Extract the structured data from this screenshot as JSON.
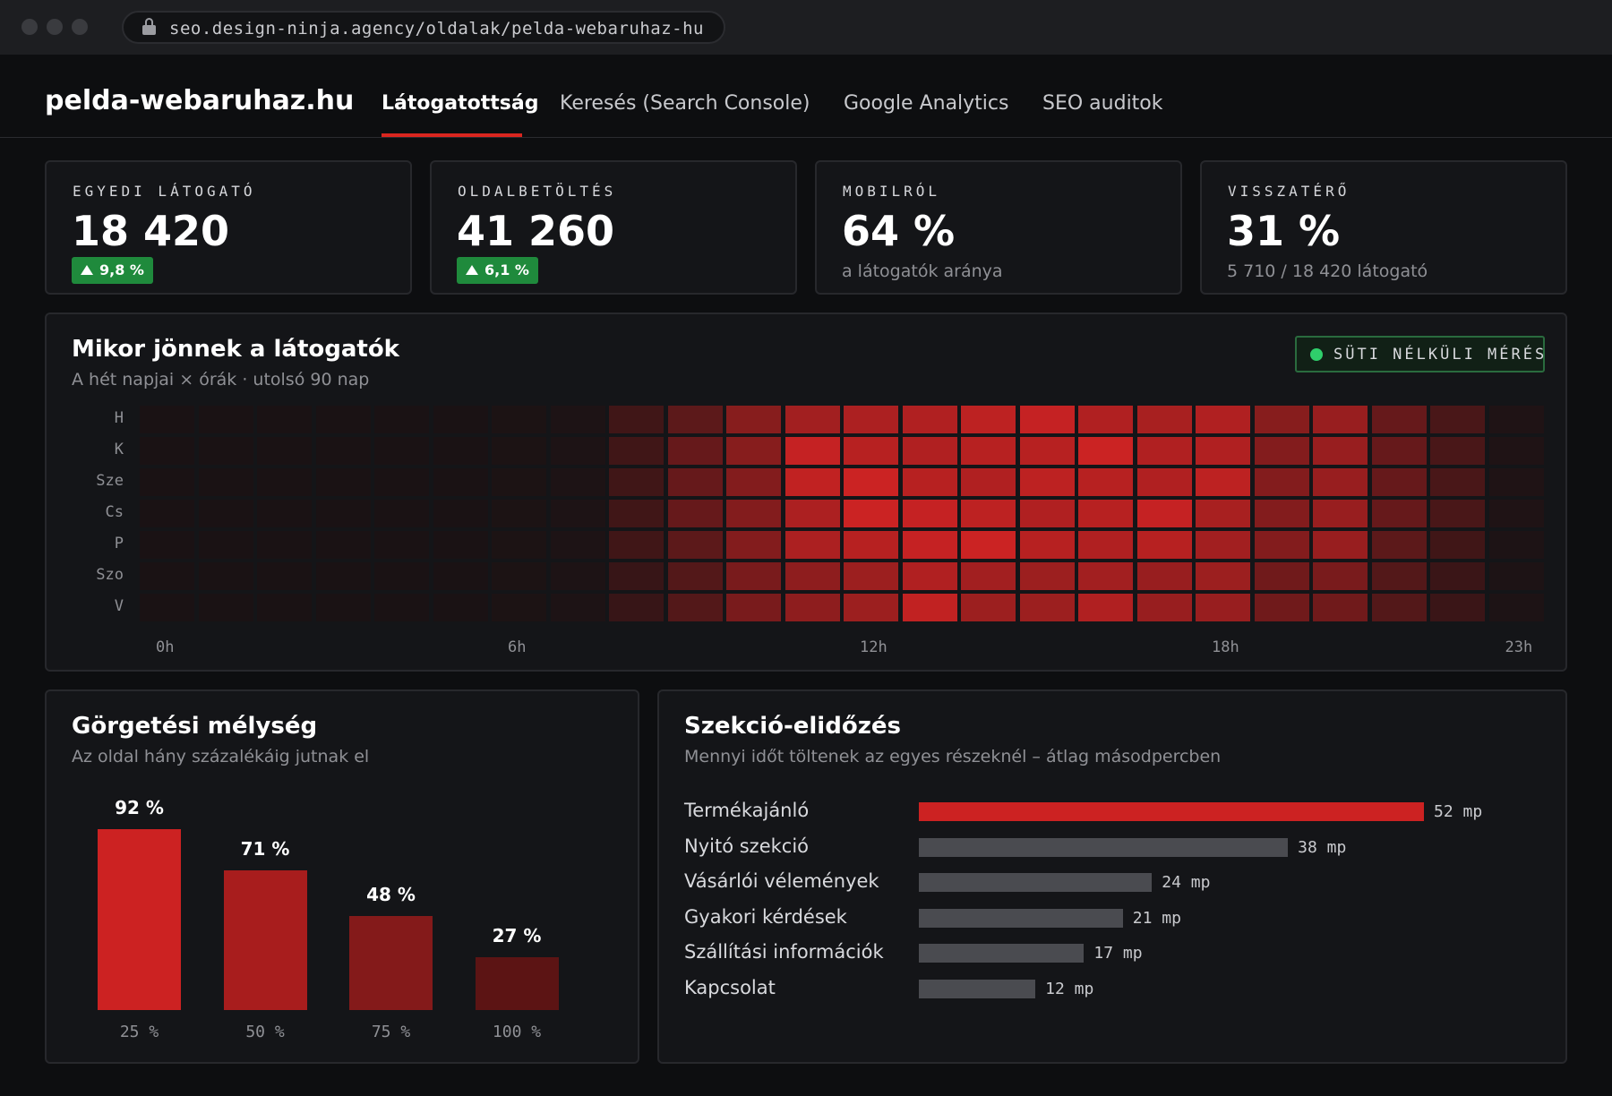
{
  "browser": {
    "url": "seo.design-ninja.agency/oldalak/pelda-webaruhaz-hu"
  },
  "header": {
    "site_title": "pelda-webaruhaz.hu",
    "tabs": [
      {
        "label": "Látogatottság",
        "active": true
      },
      {
        "label": "Keresés (Search Console)",
        "active": false
      },
      {
        "label": "Google Analytics",
        "active": false
      },
      {
        "label": "SEO auditok",
        "active": false
      }
    ]
  },
  "kpis": [
    {
      "label": "EGYEDI LÁTOGATÓ",
      "value": "18 420",
      "badge": "9,8 %"
    },
    {
      "label": "OLDALBETÖLTÉS",
      "value": "41 260",
      "badge": "6,1 %"
    },
    {
      "label": "MOBILRÓL",
      "value": "64 %",
      "sub": "a látogatók aránya"
    },
    {
      "label": "VISSZATÉRŐ",
      "value": "31 %",
      "sub": "5 710 / 18 420 látogató"
    }
  ],
  "heatmap": {
    "title": "Mikor jönnek a látogatók",
    "subtitle": "A hét napjai × órák · utolsó 90 nap",
    "badge": "SÜTI NÉLKÜLI MÉRÉS",
    "chart_data": {
      "type": "heatmap",
      "rows": [
        "H",
        "K",
        "Sze",
        "Cs",
        "P",
        "Szo",
        "V"
      ],
      "x_tick_labels": [
        "0h",
        "6h",
        "12h",
        "18h",
        "23h"
      ],
      "columns": [
        0,
        1,
        2,
        3,
        4,
        5,
        6,
        7,
        8,
        9,
        10,
        11,
        12,
        13,
        14,
        15,
        16,
        17,
        18,
        19,
        20,
        21,
        22,
        23
      ],
      "values": [
        [
          0.03,
          0.03,
          0.03,
          0.03,
          0.03,
          0.03,
          0.04,
          0.05,
          0.25,
          0.4,
          0.62,
          0.75,
          0.8,
          0.82,
          0.88,
          0.92,
          0.82,
          0.78,
          0.82,
          0.62,
          0.7,
          0.45,
          0.3,
          0.06
        ],
        [
          0.03,
          0.03,
          0.03,
          0.03,
          0.03,
          0.03,
          0.04,
          0.05,
          0.25,
          0.45,
          0.62,
          0.92,
          0.85,
          0.82,
          0.85,
          0.85,
          0.95,
          0.82,
          0.82,
          0.6,
          0.7,
          0.45,
          0.3,
          0.06
        ],
        [
          0.03,
          0.03,
          0.03,
          0.03,
          0.03,
          0.03,
          0.04,
          0.05,
          0.25,
          0.45,
          0.6,
          0.9,
          0.95,
          0.85,
          0.82,
          0.88,
          0.85,
          0.82,
          0.88,
          0.6,
          0.7,
          0.45,
          0.3,
          0.06
        ],
        [
          0.03,
          0.03,
          0.03,
          0.03,
          0.03,
          0.03,
          0.04,
          0.05,
          0.25,
          0.45,
          0.6,
          0.8,
          0.95,
          0.92,
          0.88,
          0.82,
          0.85,
          0.92,
          0.78,
          0.6,
          0.7,
          0.45,
          0.3,
          0.06
        ],
        [
          0.03,
          0.03,
          0.03,
          0.03,
          0.03,
          0.03,
          0.04,
          0.05,
          0.25,
          0.4,
          0.6,
          0.8,
          0.85,
          0.92,
          0.95,
          0.85,
          0.82,
          0.85,
          0.75,
          0.6,
          0.7,
          0.4,
          0.25,
          0.05
        ],
        [
          0.03,
          0.03,
          0.03,
          0.03,
          0.03,
          0.03,
          0.04,
          0.05,
          0.2,
          0.35,
          0.55,
          0.65,
          0.72,
          0.82,
          0.75,
          0.72,
          0.75,
          0.7,
          0.72,
          0.5,
          0.55,
          0.35,
          0.22,
          0.05
        ],
        [
          0.03,
          0.03,
          0.03,
          0.03,
          0.03,
          0.03,
          0.04,
          0.05,
          0.2,
          0.35,
          0.55,
          0.65,
          0.72,
          0.9,
          0.72,
          0.72,
          0.82,
          0.7,
          0.7,
          0.5,
          0.5,
          0.35,
          0.22,
          0.05
        ]
      ]
    }
  },
  "scroll_depth": {
    "title": "Görgetési mélység",
    "subtitle": "Az oldal hány százalékáig jutnak el",
    "chart_data": {
      "type": "bar",
      "categories": [
        "25 %",
        "50 %",
        "75 %",
        "100 %"
      ],
      "values": [
        92,
        71,
        48,
        27
      ],
      "value_labels": [
        "92 %",
        "71 %",
        "48 %",
        "27 %"
      ],
      "colors": [
        "#cc2222",
        "#a81d1d",
        "#841a1a",
        "#5c1414"
      ]
    }
  },
  "section_dwell": {
    "title": "Szekció-elidőzés",
    "subtitle": "Mennyi időt töltenek az egyes részeknél – átlag másodpercben",
    "chart_data": {
      "type": "bar",
      "orientation": "horizontal",
      "categories": [
        "Termékajánló",
        "Nyitó szekció",
        "Vásárlói vélemények",
        "Gyakori kérdések",
        "Szállítási információk",
        "Kapcsolat"
      ],
      "values": [
        52,
        38,
        24,
        21,
        17,
        12
      ],
      "value_labels": [
        "52 mp",
        "38 mp",
        "24 mp",
        "21 mp",
        "17 mp",
        "12 mp"
      ],
      "colors": [
        "#cc2222",
        "#4a4b50",
        "#4a4b50",
        "#4a4b50",
        "#4a4b50",
        "#4a4b50"
      ]
    }
  }
}
